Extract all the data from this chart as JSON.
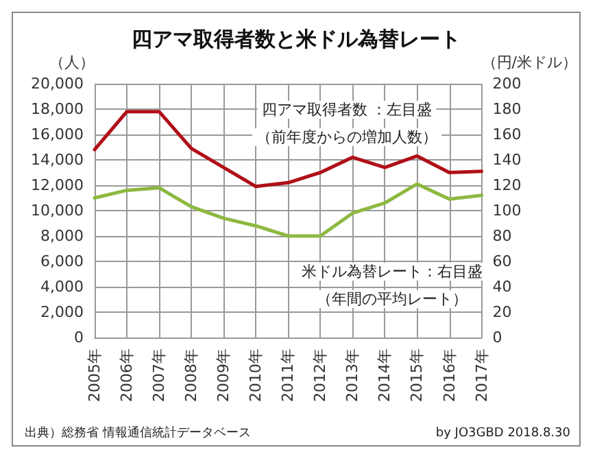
{
  "chart_data": {
    "type": "line",
    "title": "四アマ取得者数と米ドル為替レート",
    "ylabel": "（人）",
    "y2label": "（円/米ドル）",
    "categories": [
      "2005年",
      "2006年",
      "2007年",
      "2008年",
      "2009年",
      "2010年",
      "2011年",
      "2012年",
      "2013年",
      "2014年",
      "2015年",
      "2016年",
      "2017年"
    ],
    "series": [
      {
        "color": "#b00f17",
        "values": [
          14800,
          17800,
          17800,
          14900,
          13400,
          11900,
          12200,
          13000,
          14200,
          13400,
          14300,
          13000,
          13100
        ]
      },
      {
        "color": "#8db840",
        "axis": "y2",
        "values": [
          110,
          116,
          118,
          103,
          94,
          88,
          80,
          80,
          98,
          106,
          121,
          109,
          112
        ]
      }
    ],
    "ylim": [
      0,
      20000
    ],
    "yticks": [
      {
        "value": 0,
        "label": "0"
      },
      {
        "value": 2000,
        "label": "2,000"
      },
      {
        "value": 4000,
        "label": "4,000"
      },
      {
        "value": 6000,
        "label": "6,000"
      },
      {
        "value": 8000,
        "label": "8,000"
      },
      {
        "value": 10000,
        "label": "10,000"
      },
      {
        "value": 12000,
        "label": "12,000"
      },
      {
        "value": 14000,
        "label": "14,000"
      },
      {
        "value": 16000,
        "label": "16,000"
      },
      {
        "value": 18000,
        "label": "18,000"
      },
      {
        "value": 20000,
        "label": "20,000"
      }
    ],
    "y2lim": [
      0,
      200
    ],
    "y2ticks": [
      0,
      20,
      40,
      60,
      80,
      100,
      120,
      140,
      160,
      180,
      200
    ],
    "grid": true,
    "marker": "none",
    "line_style": "solid",
    "annotations": [
      "四アマ取得者数 ：左目盛",
      "（前年度からの増加人数）",
      "米ドル為替レート：右目盛",
      "（年間の平均レート）",
      "出典）総務省 情報通信統計データベース",
      "by JO3GBD 2018.8.30"
    ]
  }
}
